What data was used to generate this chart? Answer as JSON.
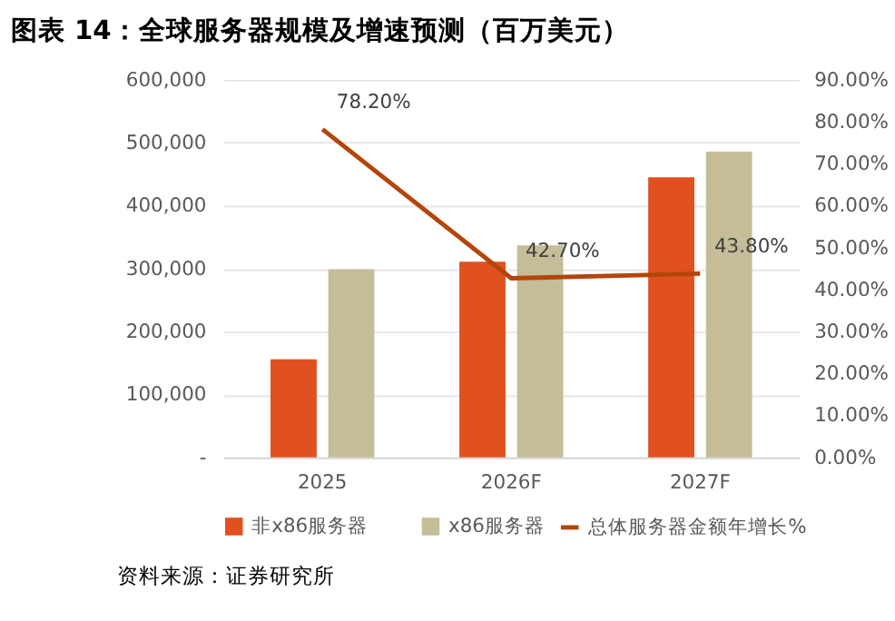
{
  "chart_data": {
    "type": "bar",
    "title": "图表 14：全球服务器规模及增速预测（百万美元）",
    "categories": [
      "2025",
      "2026F",
      "2027F"
    ],
    "series": [
      {
        "name": "非x86服务器",
        "color": "#e0511f",
        "values": [
          156000,
          311000,
          445000
        ]
      },
      {
        "name": "x86服务器",
        "color": "#c5bd97",
        "values": [
          299000,
          337000,
          486000
        ]
      },
      {
        "name": "总体服务器金额年增长%",
        "type": "line",
        "axis": "y2",
        "color": "#b3460a",
        "values": [
          78.2,
          42.7,
          43.8
        ],
        "value_labels": [
          "78.20%",
          "42.70%",
          "43.80%"
        ]
      }
    ],
    "ylim": [
      0,
      600000
    ],
    "yticks": [
      {
        "value": 0,
        "label": "-"
      },
      {
        "value": 100000,
        "label": "100,000"
      },
      {
        "value": 200000,
        "label": "200,000"
      },
      {
        "value": 300000,
        "label": "300,000"
      },
      {
        "value": 400000,
        "label": "400,000"
      },
      {
        "value": 500000,
        "label": "500,000"
      },
      {
        "value": 600000,
        "label": "600,000"
      }
    ],
    "y2lim": [
      0,
      90
    ],
    "y2ticks": [
      {
        "value": 0,
        "label": "0.00%"
      },
      {
        "value": 10,
        "label": "10.00%"
      },
      {
        "value": 20,
        "label": "20.00%"
      },
      {
        "value": 30,
        "label": "30.00%"
      },
      {
        "value": 40,
        "label": "40.00%"
      },
      {
        "value": 50,
        "label": "50.00%"
      },
      {
        "value": 60,
        "label": "60.00%"
      },
      {
        "value": 70,
        "label": "70.00%"
      },
      {
        "value": 80,
        "label": "80.00%"
      },
      {
        "value": 90,
        "label": "90.00%"
      }
    ],
    "grid": "y",
    "legend": "bottom",
    "annotations": [
      "资料来源：证券研究所"
    ]
  }
}
